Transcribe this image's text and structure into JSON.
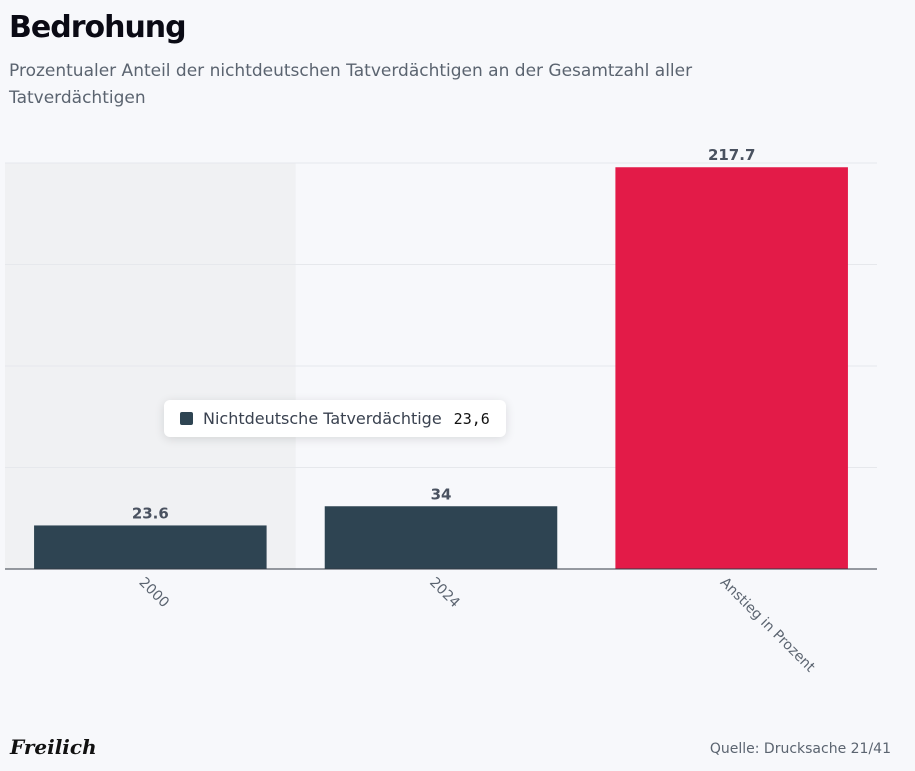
{
  "header": {
    "title": "Bedrohung",
    "subtitle": "Prozentualer Anteil der nichtdeutschen Tatverdächtigen an der Gesamtzahl aller Tatverdächtigen"
  },
  "tooltip": {
    "series_name": "Nichtdeutsche Tatverdächtige",
    "value": "23,6"
  },
  "footer": {
    "brand": "Freilich",
    "source": "Quelle: Drucksache 21/41"
  },
  "colors": {
    "series": "#2e4452",
    "highlight": "#e31b48",
    "background": "#f7f8fb",
    "hover_band": "#f0f1f3"
  },
  "chart_data": {
    "type": "bar",
    "categories": [
      "2000",
      "2024",
      "Anstieg in Prozent"
    ],
    "series": [
      {
        "name": "Nichtdeutsche Tatverdächtige",
        "values": [
          23.6,
          34,
          217.7
        ]
      }
    ],
    "data_labels": [
      "23.6",
      "34",
      "217.7"
    ],
    "highlighted_index": 2,
    "hovered_index": 0,
    "ylim": [
      0,
      220
    ],
    "grid": true,
    "legend": "none"
  }
}
